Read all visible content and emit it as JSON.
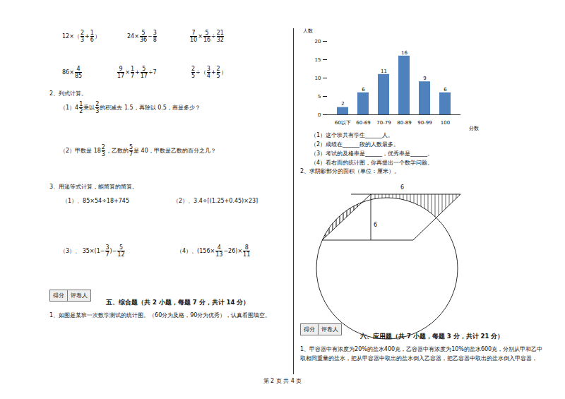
{
  "exercises": {
    "calc": [
      [
        "12×（",
        {
          "n": "2",
          "d": "3"
        },
        "+",
        {
          "n": "1",
          "d": "6"
        },
        "）"
      ],
      [
        "24×",
        {
          "n": "5",
          "d": "36"
        },
        "−",
        {
          "n": "3",
          "d": "8"
        }
      ],
      [
        {
          "n": "7",
          "d": "10"
        },
        "×",
        {
          "n": "5",
          "d": "16"
        },
        "÷",
        {
          "n": "21",
          "d": "32"
        }
      ],
      [
        "86×",
        {
          "n": "4",
          "d": "85"
        }
      ],
      [
        {
          "n": "9",
          "d": "17"
        },
        "×",
        {
          "n": "1",
          "d": "7"
        },
        "+",
        {
          "n": "5",
          "d": "17"
        },
        "÷7"
      ],
      [
        {
          "n": "2",
          "d": "5"
        },
        "÷（",
        {
          "n": "3",
          "d": "4"
        },
        "+",
        {
          "n": "2",
          "d": "5"
        },
        "）"
      ]
    ],
    "q2_title": "2、列式计算。",
    "q2_1": [
      "（1）4",
      {
        "n": "1",
        "d": "2"
      },
      "乘以",
      {
        "n": "2",
        "d": "3"
      },
      "的积减去 1.5，再除以 0.5，商是多少？"
    ],
    "q2_2": [
      "（2）甲数是 18",
      {
        "n": "2",
        "d": "3"
      },
      "，乙数的",
      {
        "n": "5",
        "d": "7"
      },
      "是 40，甲数是乙数的百分之几？"
    ],
    "q3_title": "3、用递等式计算，能简算的简算。",
    "q3": [
      [
        "（1）、85×54÷18+745"
      ],
      [
        "（2）、3.4÷[(1.25+0.45)×23]"
      ],
      [
        "（3）、 35×(1−",
        {
          "n": "3",
          "d": "7"
        },
        ")−",
        {
          "n": "5",
          "d": "12"
        }
      ],
      [
        "（4）、(156×",
        {
          "n": "4",
          "d": "13"
        },
        "−26)×",
        {
          "n": "8",
          "d": "11"
        }
      ]
    ]
  },
  "section5": {
    "score_box": [
      "得分",
      "评卷人"
    ],
    "title": "五、综合题（共 2 小题，每题 7 分，共计 14 分）",
    "q1": "1、如图是某班一次数学测试的统计图。（60分为及格，90分为优秀），认真看图填空。"
  },
  "chart_data": {
    "type": "bar",
    "categories": [
      "60以下",
      "60-69",
      "70-79",
      "80-89",
      "90-99",
      "100"
    ],
    "values": [
      2,
      6,
      11,
      16,
      9,
      6
    ],
    "color": "#4f81bd",
    "ylim": [
      0,
      20
    ],
    "yticks": [
      0,
      5,
      10,
      15,
      20
    ],
    "y_label": "人数",
    "x_label": "分数",
    "grid": false,
    "data_labels": true
  },
  "chart_questions": [
    "（1）这个班共有学生______人。",
    "（2）成绩在______段的人数最多。",
    "（3）考试的及格率是______，优秀率是______。",
    "（4）看右面的统计图，你再提出一个数学问题。"
  ],
  "q_shadow": {
    "title": "2、求阴影部分的面积（单位：厘米）。",
    "labels": [
      "6",
      "6"
    ]
  },
  "section6": {
    "score_box": [
      "得分",
      "评卷人"
    ],
    "title": "六、应用题（共 7 小题，每题 3 分，共计 21 分）",
    "q1": [
      "1、甲容器中有浓度为20%的盐水400克，乙容器中有浓度为10%的盐水600克，分别从甲和乙中",
      "取相同重量的盐水，把从甲容器中取出的盐水倒入乙容器，把乙容器中取出的盐水倒入甲容器，"
    ]
  },
  "footer": "第 2 页 共 4 页"
}
